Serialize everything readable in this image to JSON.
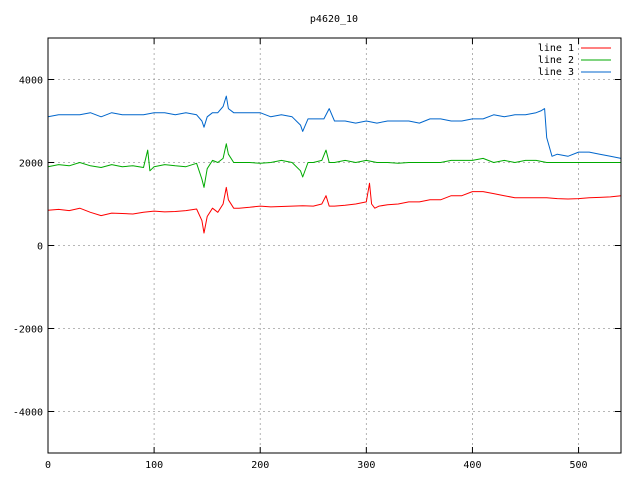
{
  "chart_data": {
    "type": "line",
    "title": "p4620_10",
    "xlabel": "",
    "ylabel": "",
    "xlim": [
      0,
      540
    ],
    "ylim": [
      -5000,
      5000
    ],
    "xticks": [
      0,
      100,
      200,
      300,
      400,
      500
    ],
    "yticks": [
      -4000,
      -2000,
      0,
      2000,
      4000
    ],
    "grid": true,
    "legend_position": "top-right",
    "series": [
      {
        "name": "line 1",
        "color": "#ff0000",
        "x": [
          0,
          10,
          20,
          30,
          40,
          50,
          60,
          70,
          80,
          90,
          100,
          110,
          120,
          130,
          140,
          145,
          147,
          150,
          155,
          160,
          165,
          168,
          170,
          175,
          180,
          190,
          200,
          210,
          220,
          230,
          240,
          250,
          258,
          262,
          265,
          270,
          280,
          290,
          300,
          303,
          305,
          308,
          312,
          320,
          330,
          340,
          350,
          360,
          370,
          380,
          390,
          400,
          410,
          420,
          430,
          440,
          450,
          460,
          470,
          480,
          490,
          500,
          510,
          520,
          530,
          540
        ],
        "y": [
          850,
          870,
          840,
          900,
          800,
          720,
          780,
          770,
          760,
          800,
          830,
          810,
          820,
          840,
          880,
          600,
          300,
          700,
          900,
          800,
          1000,
          1400,
          1100,
          900,
          900,
          920,
          950,
          930,
          940,
          950,
          960,
          950,
          1000,
          1200,
          950,
          950,
          970,
          1000,
          1050,
          1500,
          1000,
          900,
          950,
          980,
          1000,
          1050,
          1050,
          1100,
          1100,
          1200,
          1200,
          1300,
          1300,
          1250,
          1200,
          1150,
          1150,
          1150,
          1150,
          1130,
          1120,
          1130,
          1150,
          1160,
          1170,
          1200
        ]
      },
      {
        "name": "line 2",
        "color": "#00aa00",
        "x": [
          0,
          10,
          20,
          30,
          40,
          50,
          60,
          70,
          80,
          90,
          94,
          96,
          100,
          110,
          120,
          130,
          140,
          145,
          147,
          150,
          155,
          160,
          165,
          168,
          170,
          175,
          180,
          190,
          200,
          210,
          220,
          230,
          238,
          240,
          245,
          250,
          258,
          262,
          265,
          270,
          280,
          290,
          300,
          310,
          320,
          330,
          340,
          350,
          360,
          370,
          380,
          390,
          400,
          410,
          420,
          430,
          440,
          450,
          460,
          470,
          480,
          490,
          500,
          510,
          520,
          530,
          540
        ],
        "y": [
          1900,
          1950,
          1920,
          2000,
          1920,
          1880,
          1950,
          1900,
          1920,
          1880,
          2300,
          1800,
          1900,
          1950,
          1920,
          1900,
          1980,
          1600,
          1400,
          1850,
          2050,
          2000,
          2100,
          2450,
          2200,
          2000,
          2000,
          2000,
          1980,
          2000,
          2050,
          2000,
          1800,
          1650,
          2000,
          2000,
          2050,
          2300,
          2000,
          2000,
          2050,
          2000,
          2050,
          2000,
          2000,
          1980,
          2000,
          2000,
          2000,
          2000,
          2050,
          2050,
          2050,
          2100,
          2000,
          2050,
          2000,
          2050,
          2050,
          2000,
          2000,
          2000,
          2000,
          2000,
          2000,
          2000,
          2000
        ]
      },
      {
        "name": "line 3",
        "color": "#0066cc",
        "x": [
          0,
          10,
          20,
          30,
          40,
          50,
          60,
          70,
          80,
          90,
          100,
          110,
          120,
          130,
          140,
          145,
          147,
          150,
          155,
          160,
          165,
          168,
          170,
          175,
          180,
          190,
          200,
          210,
          220,
          230,
          238,
          240,
          245,
          250,
          260,
          265,
          270,
          280,
          290,
          300,
          310,
          320,
          330,
          340,
          350,
          360,
          370,
          380,
          390,
          400,
          410,
          420,
          430,
          440,
          450,
          460,
          465,
          468,
          470,
          475,
          480,
          490,
          500,
          510,
          520,
          530,
          540
        ],
        "y": [
          3100,
          3150,
          3150,
          3150,
          3200,
          3100,
          3200,
          3150,
          3150,
          3150,
          3200,
          3200,
          3150,
          3200,
          3150,
          3000,
          2850,
          3100,
          3200,
          3200,
          3350,
          3600,
          3300,
          3200,
          3200,
          3200,
          3200,
          3100,
          3150,
          3100,
          2900,
          2750,
          3050,
          3050,
          3050,
          3300,
          3000,
          3000,
          2950,
          3000,
          2950,
          3000,
          3000,
          3000,
          2950,
          3050,
          3050,
          3000,
          3000,
          3050,
          3050,
          3150,
          3100,
          3150,
          3150,
          3200,
          3250,
          3300,
          2600,
          2150,
          2200,
          2150,
          2250,
          2250,
          2200,
          2150,
          2100
        ]
      }
    ]
  }
}
